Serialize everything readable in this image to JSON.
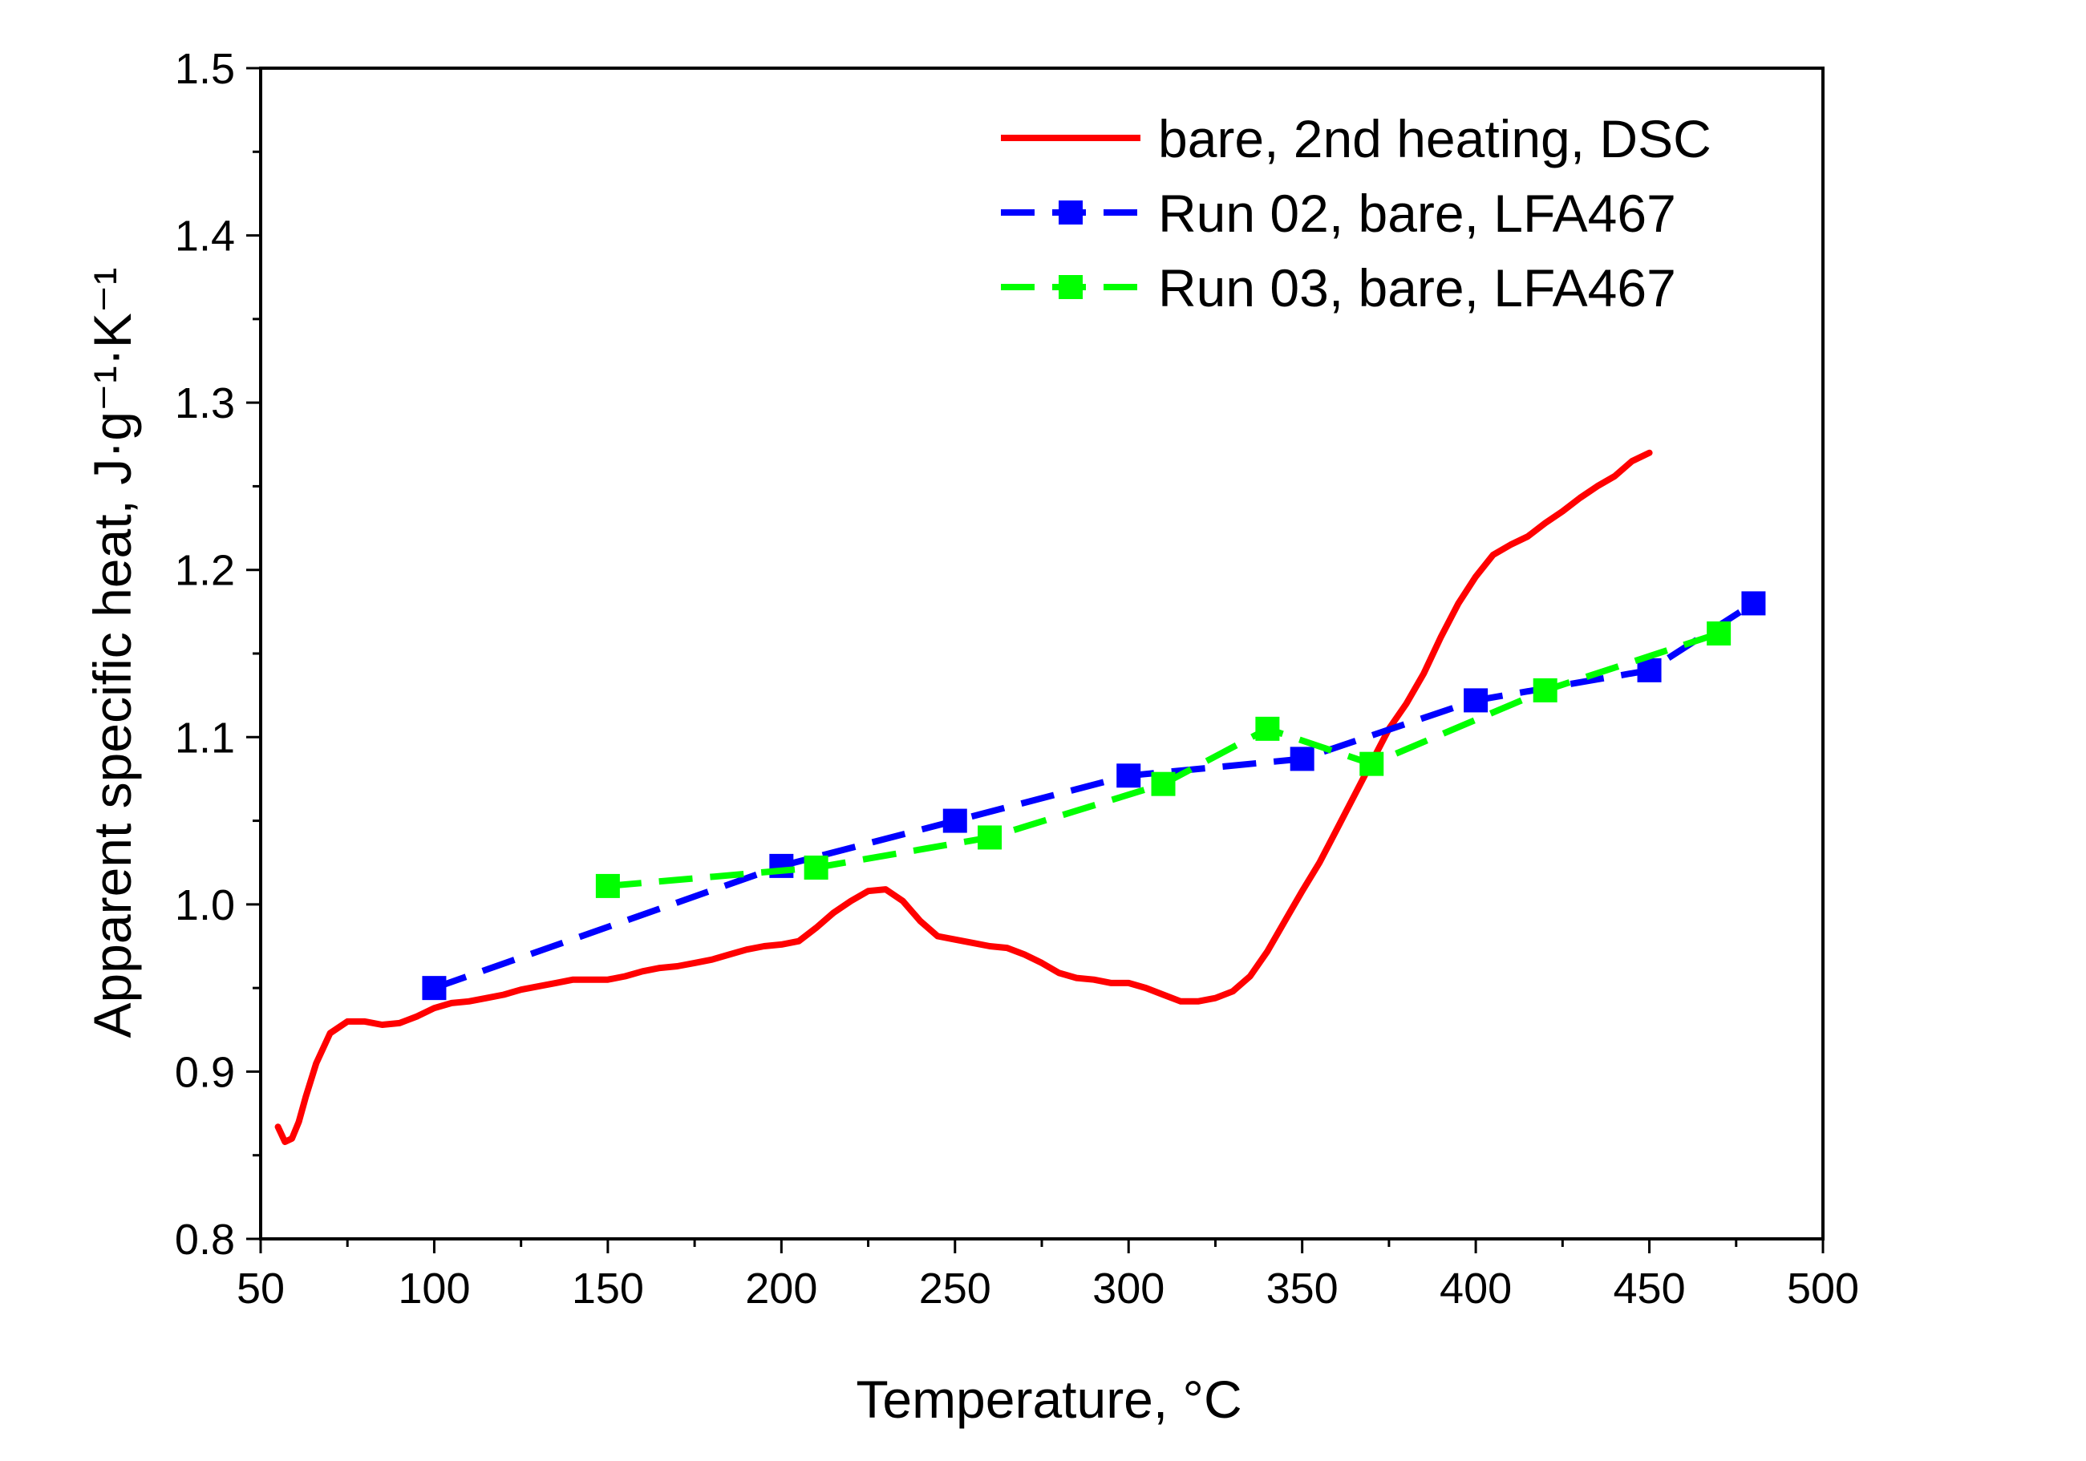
{
  "chart_data": {
    "type": "line",
    "title": "",
    "xlabel": "Temperature, °C",
    "ylabel": "Apparent specific heat, J·g⁻¹·K⁻¹",
    "xlim": [
      50,
      500
    ],
    "ylim": [
      0.8,
      1.5
    ],
    "xticks": [
      50,
      100,
      150,
      200,
      250,
      300,
      350,
      400,
      450,
      500
    ],
    "yticks": [
      0.8,
      0.9,
      1.0,
      1.1,
      1.2,
      1.3,
      1.4,
      1.5
    ],
    "ytick_labels": [
      "0.8",
      "0.9",
      "1.0",
      "1.1",
      "1.2",
      "1.3",
      "1.4",
      "1.5"
    ],
    "legend_position": "top-right",
    "series": [
      {
        "name": "bare, 2nd heating, DSC",
        "color": "#ff0000",
        "style": "solid",
        "marker": "none",
        "x": [
          55,
          57,
          59,
          61,
          63,
          66,
          70,
          75,
          80,
          85,
          90,
          95,
          100,
          105,
          110,
          115,
          120,
          125,
          130,
          135,
          140,
          145,
          150,
          155,
          160,
          165,
          170,
          175,
          180,
          185,
          190,
          195,
          200,
          205,
          210,
          215,
          220,
          225,
          230,
          235,
          240,
          245,
          250,
          255,
          260,
          265,
          270,
          275,
          280,
          285,
          290,
          295,
          300,
          305,
          310,
          315,
          320,
          325,
          330,
          335,
          340,
          345,
          350,
          355,
          360,
          365,
          370,
          375,
          380,
          385,
          390,
          395,
          400,
          405,
          410,
          415,
          420,
          425,
          430,
          435,
          440,
          445,
          450
        ],
        "y": [
          0.867,
          0.858,
          0.86,
          0.87,
          0.885,
          0.905,
          0.923,
          0.93,
          0.93,
          0.928,
          0.929,
          0.933,
          0.938,
          0.941,
          0.942,
          0.944,
          0.946,
          0.949,
          0.951,
          0.953,
          0.955,
          0.955,
          0.955,
          0.957,
          0.96,
          0.962,
          0.963,
          0.965,
          0.967,
          0.97,
          0.973,
          0.975,
          0.976,
          0.978,
          0.986,
          0.995,
          1.002,
          1.008,
          1.009,
          1.002,
          0.99,
          0.981,
          0.979,
          0.977,
          0.975,
          0.974,
          0.97,
          0.965,
          0.959,
          0.956,
          0.955,
          0.953,
          0.953,
          0.95,
          0.946,
          0.942,
          0.942,
          0.944,
          0.948,
          0.957,
          0.972,
          0.99,
          1.008,
          1.025,
          1.045,
          1.065,
          1.085,
          1.105,
          1.12,
          1.138,
          1.16,
          1.18,
          1.196,
          1.209,
          1.215,
          1.22,
          1.228,
          1.235,
          1.243,
          1.25,
          1.256,
          1.265,
          1.27
        ]
      },
      {
        "name": "Run 02, bare, LFA467",
        "color": "#0000ff",
        "style": "dashed",
        "marker": "square",
        "x": [
          100,
          200,
          250,
          300,
          350,
          400,
          450,
          480
        ],
        "y": [
          0.95,
          1.023,
          1.05,
          1.077,
          1.087,
          1.122,
          1.14,
          1.18
        ]
      },
      {
        "name": "Run 03, bare, LFA467",
        "color": "#00ff00",
        "style": "dashed",
        "marker": "square",
        "x": [
          150,
          210,
          260,
          310,
          340,
          370,
          420,
          470
        ],
        "y": [
          1.011,
          1.022,
          1.04,
          1.072,
          1.105,
          1.084,
          1.128,
          1.162
        ]
      }
    ]
  }
}
